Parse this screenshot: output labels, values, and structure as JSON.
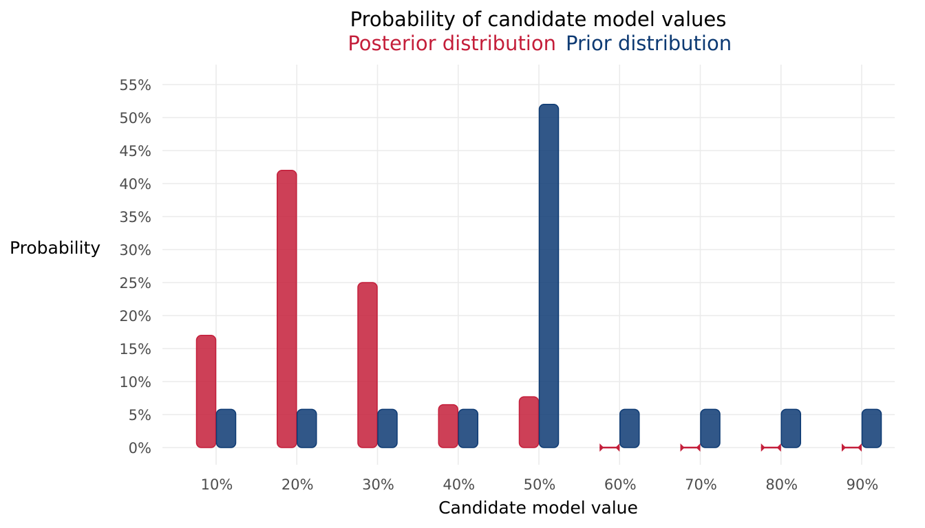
{
  "chart_data": {
    "type": "bar",
    "title": "Probability of candidate model values",
    "xlabel": "Candidate model value",
    "ylabel": "Probability",
    "categories": [
      "10%",
      "20%",
      "30%",
      "40%",
      "50%",
      "60%",
      "70%",
      "80%",
      "90%"
    ],
    "ylim": [
      0,
      0.55
    ],
    "y_ticks": [
      0,
      0.05,
      0.1,
      0.15,
      0.2,
      0.25,
      0.3,
      0.35,
      0.4,
      0.45,
      0.5,
      0.55
    ],
    "y_tick_labels": [
      "0%",
      "5%",
      "10%",
      "15%",
      "20%",
      "25%",
      "30%",
      "35%",
      "40%",
      "45%",
      "50%",
      "55%"
    ],
    "grid": true,
    "legend_position": "top",
    "series": [
      {
        "name": "Posterior distribution",
        "color": "#c41e3a",
        "values": [
          0.17,
          0.42,
          0.25,
          0.065,
          0.077,
          0.0,
          0.0,
          0.0,
          0.0
        ]
      },
      {
        "name": "Prior distribution",
        "color": "#0d3a73",
        "values": [
          0.058,
          0.058,
          0.058,
          0.058,
          0.52,
          0.058,
          0.058,
          0.058,
          0.058
        ]
      }
    ]
  }
}
